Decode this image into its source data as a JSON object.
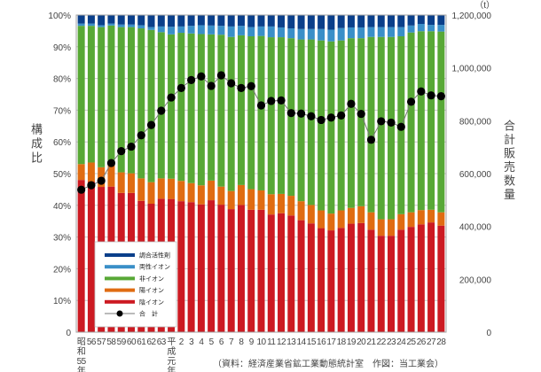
{
  "chart_data": {
    "type": "bar",
    "stacked": true,
    "secondary_type": "line",
    "ylabel": "構成比",
    "y2label": "合計販売数量",
    "y2unit": "（t）",
    "ylim": [
      0,
      100
    ],
    "y2lim": [
      0,
      1200000
    ],
    "yticks": [
      "0",
      "10%",
      "20%",
      "30%",
      "40%",
      "50%",
      "60%",
      "70%",
      "80%",
      "90%",
      "100%"
    ],
    "y2ticks": [
      "0",
      "200,000",
      "400,000",
      "600,000",
      "800,000",
      "1,000,000",
      "1,200,000"
    ],
    "grid": true,
    "legend_position": "bottom-left",
    "source": "（資料：経済産業省鉱工業動態統計室　作図：当工業会）",
    "categories": [
      "昭和55年",
      "56",
      "57",
      "58",
      "59",
      "60",
      "61",
      "62",
      "63",
      "平成元年",
      "2",
      "3",
      "4",
      "5",
      "6",
      "7",
      "8",
      "9",
      "10",
      "11",
      "12",
      "13",
      "14",
      "15",
      "16",
      "17",
      "18",
      "19",
      "20",
      "21",
      "22",
      "23",
      "24",
      "25",
      "26",
      "27",
      "28"
    ],
    "series": [
      {
        "name": "陰イオン",
        "color": "#cc1a22",
        "values": [
          48.0,
          47.5,
          45.8,
          45.9,
          43.9,
          43.9,
          41.4,
          40.5,
          42.1,
          42.0,
          41.3,
          41.0,
          40.3,
          41.6,
          40.2,
          38.8,
          40.1,
          38.6,
          38.6,
          37.1,
          37.5,
          36.8,
          35.3,
          34.3,
          32.8,
          32.1,
          32.9,
          34.2,
          34.4,
          32.3,
          30.4,
          30.4,
          32.3,
          33.2,
          34.0,
          34.6,
          33.6
        ]
      },
      {
        "name": "陽イオン",
        "color": "#e06c12",
        "values": [
          5.0,
          6.0,
          6.2,
          6.6,
          6.5,
          6.2,
          7.1,
          6.8,
          6.4,
          6.4,
          6.4,
          6.0,
          6.0,
          6.2,
          5.7,
          5.7,
          6.3,
          6.5,
          6.1,
          6.4,
          6.1,
          6.2,
          6.0,
          5.8,
          5.6,
          5.3,
          5.5,
          5.0,
          5.3,
          5.5,
          5.2,
          5.2,
          4.9,
          4.6,
          4.5,
          4.0,
          4.2
        ]
      },
      {
        "name": "非イオン",
        "color": "#58a836",
        "values": [
          43.6,
          43.1,
          44.2,
          44.2,
          45.8,
          46.1,
          47.3,
          48.0,
          46.1,
          45.5,
          46.7,
          47.2,
          47.7,
          46.1,
          47.9,
          48.6,
          47.2,
          48.2,
          48.7,
          49.5,
          49.4,
          49.7,
          51.0,
          52.2,
          53.6,
          54.3,
          53.6,
          53.5,
          53.0,
          55.3,
          57.5,
          57.5,
          56.1,
          56.7,
          56.4,
          56.3,
          57.0
        ]
      },
      {
        "name": "両性イオン",
        "color": "#3a8fc8",
        "values": [
          0.7,
          0.7,
          0.6,
          0.6,
          0.8,
          0.8,
          1.0,
          0.9,
          1.8,
          2.4,
          2.0,
          2.4,
          2.8,
          2.8,
          2.8,
          3.3,
          3.0,
          2.9,
          3.0,
          3.4,
          3.1,
          3.1,
          3.3,
          3.3,
          3.6,
          3.7,
          3.9,
          3.4,
          3.4,
          3.1,
          3.1,
          3.1,
          2.9,
          2.2,
          2.3,
          2.0,
          2.1
        ]
      },
      {
        "name": "調合活性剤",
        "color": "#0a3f8a",
        "values": [
          2.7,
          2.7,
          3.2,
          2.7,
          3.0,
          3.0,
          3.2,
          3.8,
          3.6,
          3.7,
          3.6,
          3.4,
          3.2,
          3.3,
          3.4,
          3.6,
          3.4,
          3.8,
          3.6,
          3.6,
          3.9,
          4.2,
          4.4,
          4.4,
          4.4,
          4.6,
          4.1,
          3.9,
          3.9,
          3.8,
          3.8,
          3.8,
          3.8,
          3.3,
          2.8,
          3.1,
          3.1
        ]
      }
    ],
    "line_series": {
      "name": "合　計",
      "color": "#000000",
      "axis": "right",
      "values": [
        539000,
        556000,
        573000,
        640000,
        685000,
        702000,
        745000,
        784000,
        838000,
        888000,
        924000,
        954000,
        968000,
        932000,
        972000,
        942000,
        924000,
        931000,
        858000,
        875000,
        877000,
        829000,
        827000,
        817000,
        803000,
        812000,
        820000,
        864000,
        826000,
        728000,
        798000,
        793000,
        777000,
        872000,
        911000,
        896000,
        893000
      ]
    }
  },
  "legend_order": [
    "調合活性剤",
    "両性イオン",
    "非イオン",
    "陽イオン",
    "陰イオン",
    "合　計"
  ]
}
